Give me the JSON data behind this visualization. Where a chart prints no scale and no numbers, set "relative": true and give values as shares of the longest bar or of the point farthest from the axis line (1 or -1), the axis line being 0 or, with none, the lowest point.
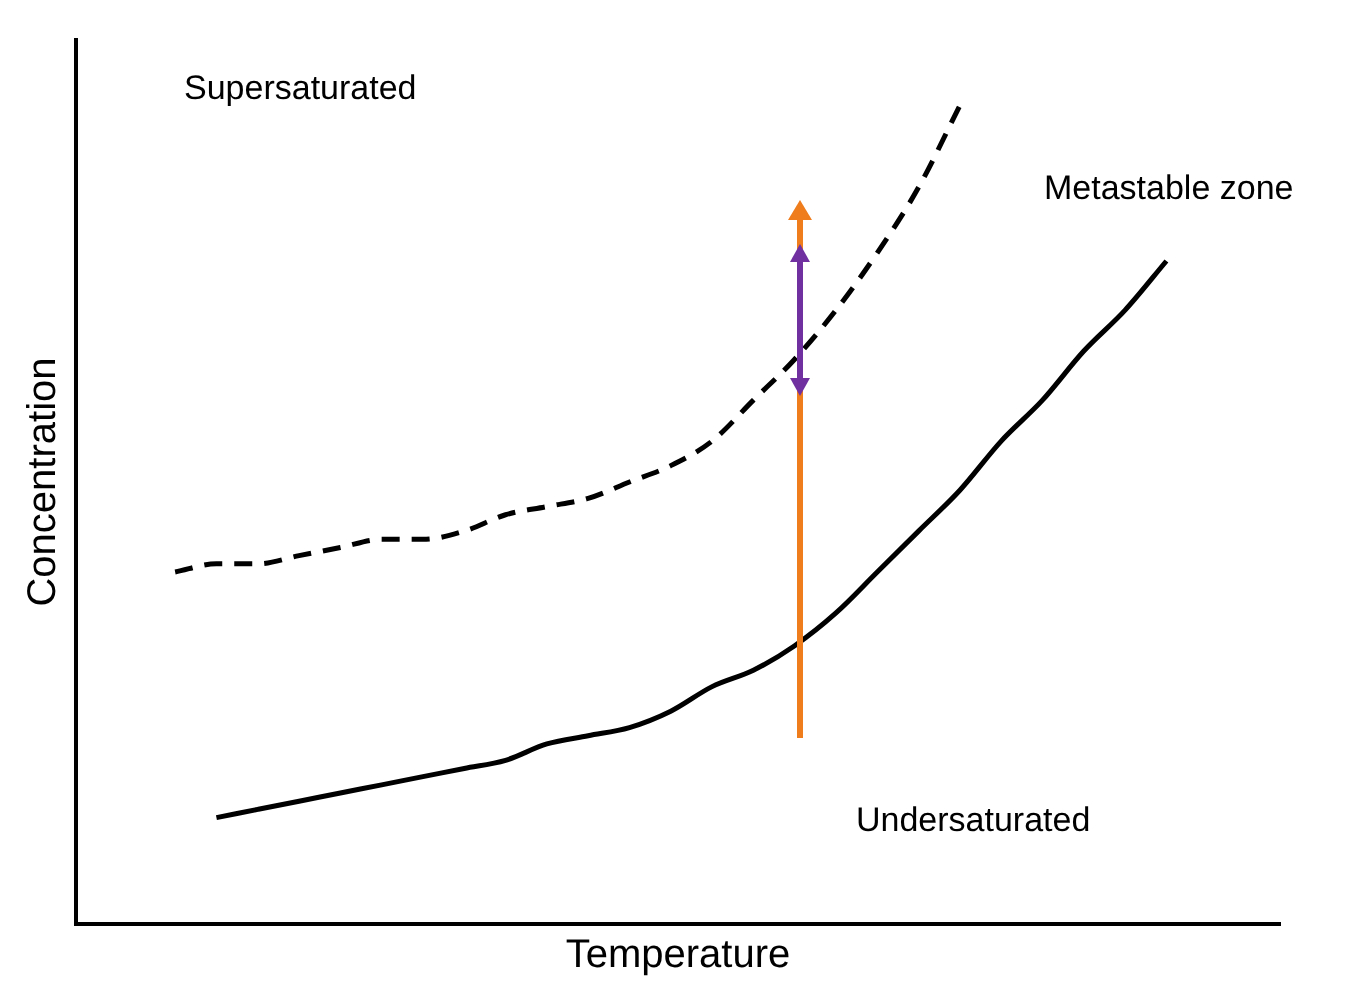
{
  "chart_data": {
    "type": "line",
    "relative": true,
    "xlabel": "Temperature",
    "ylabel": "Concentration",
    "legend": false,
    "marker": "none",
    "categories": [
      null,
      null,
      null,
      null,
      null,
      null,
      null,
      null,
      null,
      null,
      null,
      null,
      null,
      null,
      null,
      null,
      null,
      null,
      null,
      null,
      null,
      null,
      null,
      null,
      null
    ],
    "series": [
      {
        "color": "#000000",
        "line_style": "dashed",
        "values": [
          0.43,
          0.44,
          0.44,
          0.45,
          0.46,
          0.47,
          0.47,
          0.48,
          0.5,
          0.51,
          0.52,
          0.54,
          0.56,
          0.59,
          0.64,
          0.69,
          0.75,
          0.82,
          0.9,
          1,
          null,
          null,
          null,
          null,
          null
        ]
      },
      {
        "color": "#000000",
        "line_style": "solid",
        "values": [
          null,
          0.13,
          0.14,
          0.15,
          0.16,
          0.17,
          0.18,
          0.19,
          0.2,
          0.22,
          0.23,
          0.24,
          0.26,
          0.29,
          0.31,
          0.34,
          0.38,
          0.43,
          0.48,
          0.53,
          0.59,
          0.64,
          0.7,
          0.75,
          0.81
        ]
      }
    ],
    "annotations": [
      "Supersaturated",
      "Metastable zone",
      "Undersaturated"
    ]
  }
}
